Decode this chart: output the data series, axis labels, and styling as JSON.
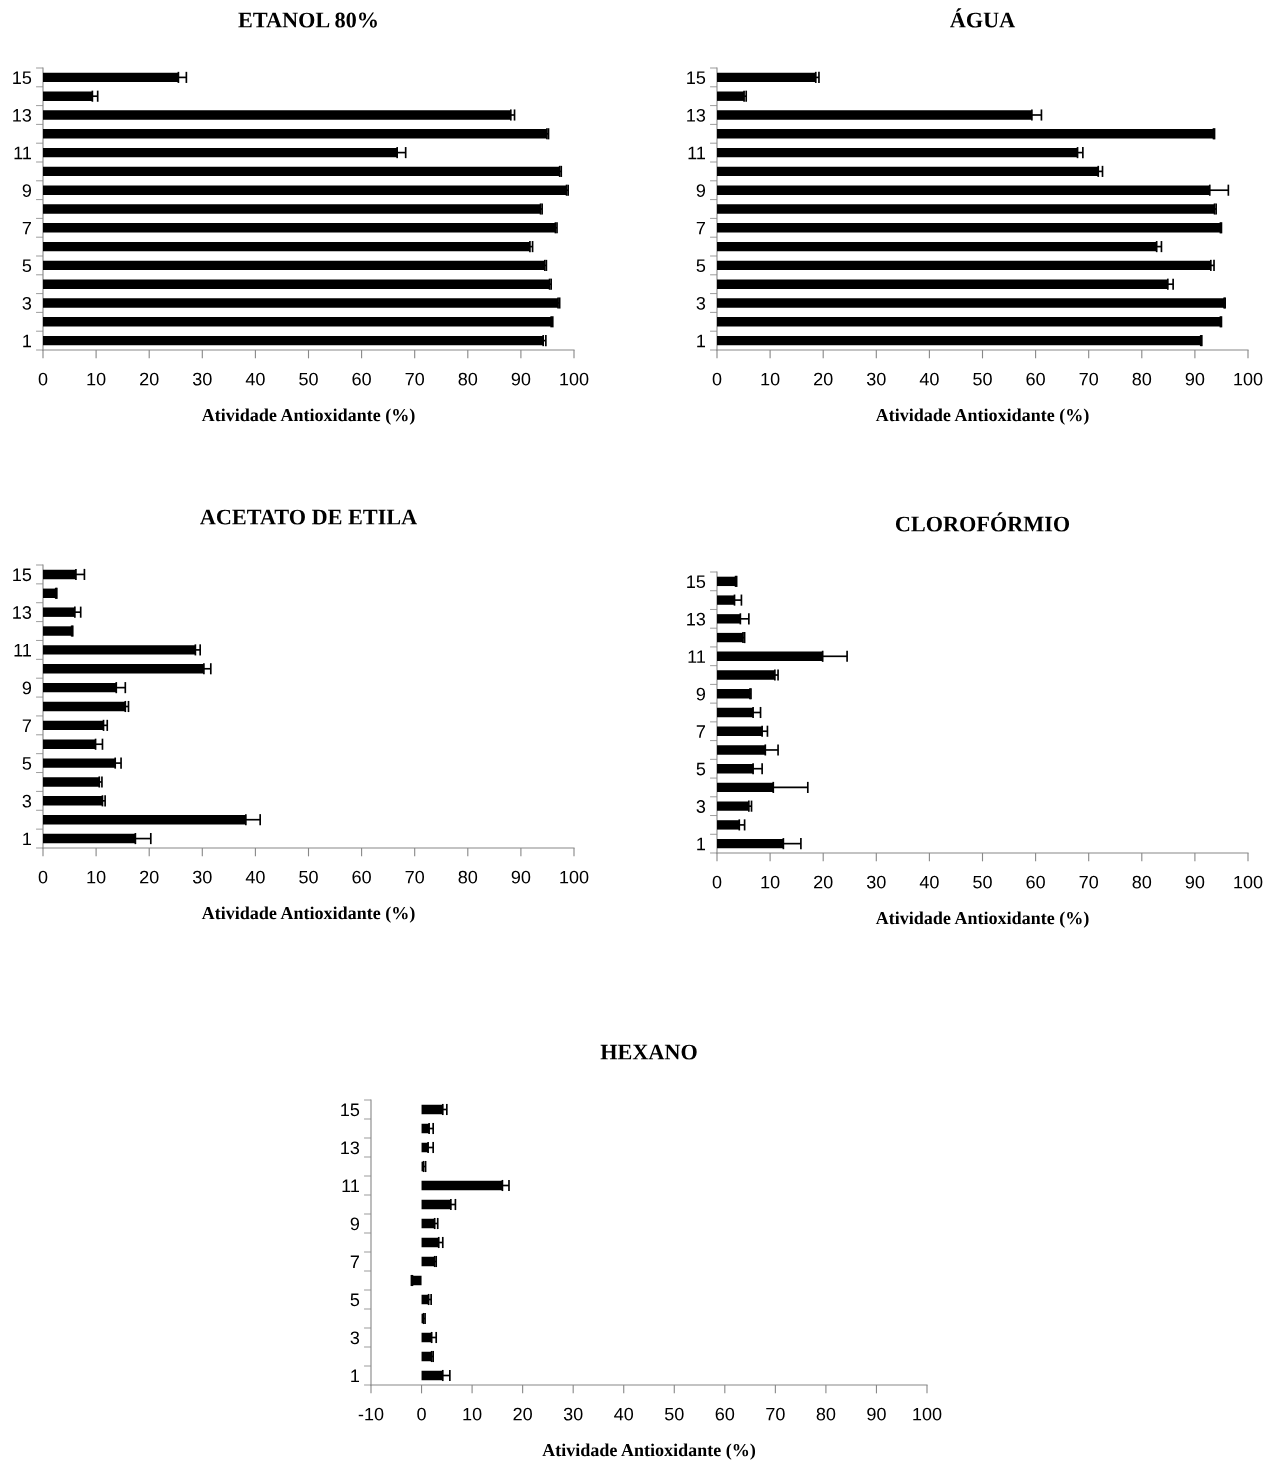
{
  "chart_data": [
    {
      "type": "bar",
      "orientation": "horizontal",
      "title": "ETANOL 80%",
      "xlabel": "Atividade Antioxidante (%)",
      "categories": [
        "15",
        null,
        "13",
        null,
        "11",
        null,
        "9",
        null,
        "7",
        null,
        "5",
        null,
        "3",
        null,
        "1"
      ],
      "values": [
        25.5,
        9.3,
        88.1,
        94.9,
        66.7,
        97.3,
        98.6,
        93.7,
        96.5,
        91.7,
        94.5,
        95.4,
        97.0,
        95.7,
        94.2
      ],
      "errors": [
        [
          25.5,
          27.0
        ],
        [
          9.3,
          10.3
        ],
        [
          88.1,
          88.8
        ],
        [
          94.9,
          95.2
        ],
        [
          66.7,
          68.3
        ],
        [
          97.3,
          97.6
        ],
        [
          98.6,
          98.9
        ],
        [
          93.7,
          94.0
        ],
        [
          96.5,
          96.8
        ],
        [
          91.7,
          92.2
        ],
        [
          94.5,
          94.8
        ],
        [
          95.4,
          95.7
        ],
        [
          97.0,
          97.3
        ],
        [
          95.7,
          96.0
        ],
        [
          94.2,
          94.7
        ]
      ],
      "color": "#000000",
      "xlim": [
        0,
        100
      ],
      "xticks": [
        0,
        10,
        20,
        30,
        40,
        50,
        60,
        70,
        80,
        90,
        100
      ],
      "grid": false
    },
    {
      "type": "bar",
      "orientation": "horizontal",
      "title": "ÁGUA",
      "xlabel": "Atividade Antioxidante (%)",
      "categories": [
        "15",
        null,
        "13",
        null,
        "11",
        null,
        "9",
        null,
        "7",
        null,
        "5",
        null,
        "3",
        null,
        "1"
      ],
      "values": [
        18.6,
        5.1,
        59.3,
        93.5,
        67.9,
        71.8,
        92.8,
        93.7,
        94.8,
        82.8,
        93.0,
        84.9,
        95.5,
        94.8,
        91.1
      ],
      "errors": [
        [
          18.6,
          19.2
        ],
        [
          5.1,
          5.5
        ],
        [
          59.3,
          61.1
        ],
        [
          93.5,
          93.7
        ],
        [
          67.9,
          68.9
        ],
        [
          71.8,
          72.6
        ],
        [
          92.8,
          96.3
        ],
        [
          93.7,
          94.0
        ],
        [
          94.8,
          95.0
        ],
        [
          82.8,
          83.7
        ],
        [
          93.0,
          93.6
        ],
        [
          84.9,
          85.9
        ],
        [
          95.5,
          95.7
        ],
        [
          94.8,
          95.0
        ],
        [
          91.1,
          91.3
        ]
      ],
      "color": "#000000",
      "xlim": [
        0,
        100
      ],
      "xticks": [
        0,
        10,
        20,
        30,
        40,
        50,
        60,
        70,
        80,
        90,
        100
      ],
      "grid": false
    },
    {
      "type": "bar",
      "orientation": "horizontal",
      "title": "ACETATO DE ETILA",
      "xlabel": "Atividade Antioxidante (%)",
      "categories": [
        "15",
        null,
        "13",
        null,
        "11",
        null,
        "9",
        null,
        "7",
        null,
        "5",
        null,
        "3",
        null,
        "1"
      ],
      "values": [
        6.2,
        2.4,
        6.0,
        5.4,
        28.7,
        30.3,
        13.8,
        15.5,
        11.4,
        9.9,
        13.6,
        10.6,
        11.2,
        38.2,
        17.4
      ],
      "errors": [
        [
          6.2,
          7.8
        ],
        [
          2.4,
          2.6
        ],
        [
          6.0,
          7.1
        ],
        [
          5.4,
          5.6
        ],
        [
          28.7,
          29.6
        ],
        [
          30.3,
          31.6
        ],
        [
          13.8,
          15.5
        ],
        [
          15.5,
          16.1
        ],
        [
          11.4,
          12.1
        ],
        [
          9.9,
          11.2
        ],
        [
          13.6,
          14.7
        ],
        [
          10.6,
          11.1
        ],
        [
          11.2,
          11.7
        ],
        [
          38.2,
          40.9
        ],
        [
          17.4,
          20.3
        ]
      ],
      "color": "#000000",
      "xlim": [
        0,
        100
      ],
      "xticks": [
        0,
        10,
        20,
        30,
        40,
        50,
        60,
        70,
        80,
        90,
        100
      ],
      "grid": false
    },
    {
      "type": "bar",
      "orientation": "horizontal",
      "title": "CLOROFÓRMIO",
      "xlabel": "Atividade Antioxidante (%)",
      "categories": [
        "15",
        null,
        "13",
        null,
        "11",
        null,
        "9",
        null,
        "7",
        null,
        "5",
        null,
        "3",
        null,
        "1"
      ],
      "values": [
        3.5,
        3.3,
        4.4,
        4.9,
        19.9,
        10.9,
        6.2,
        6.8,
        8.5,
        9.1,
        6.8,
        10.6,
        6.0,
        4.2,
        12.5
      ],
      "errors": [
        [
          3.5,
          3.7
        ],
        [
          3.3,
          4.6
        ],
        [
          4.4,
          6.0
        ],
        [
          4.9,
          5.2
        ],
        [
          19.9,
          24.5
        ],
        [
          10.9,
          11.5
        ],
        [
          6.2,
          6.4
        ],
        [
          6.8,
          8.2
        ],
        [
          8.5,
          9.5
        ],
        [
          9.1,
          11.5
        ],
        [
          6.8,
          8.5
        ],
        [
          10.6,
          17.1
        ],
        [
          6.0,
          6.5
        ],
        [
          4.2,
          5.2
        ],
        [
          12.5,
          15.8
        ]
      ],
      "color": "#000000",
      "xlim": [
        0,
        100
      ],
      "xticks": [
        0,
        10,
        20,
        30,
        40,
        50,
        60,
        70,
        80,
        90,
        100
      ],
      "grid": false
    },
    {
      "type": "bar",
      "orientation": "horizontal",
      "title": "HEXANO",
      "xlabel": "Atividade Antioxidante (%)",
      "categories": [
        "15",
        null,
        "13",
        null,
        "11",
        null,
        "9",
        null,
        "7",
        null,
        "5",
        null,
        "3",
        null,
        "1"
      ],
      "values": [
        4.2,
        1.5,
        1.3,
        0.4,
        16.0,
        5.8,
        2.6,
        3.4,
        2.6,
        -1.8,
        1.4,
        0.4,
        2.0,
        2.0,
        4.2
      ],
      "errors": [
        [
          4.2,
          5.0
        ],
        [
          1.5,
          2.3
        ],
        [
          1.3,
          2.3
        ],
        [
          0.4,
          0.8
        ],
        [
          16.0,
          17.3
        ],
        [
          5.8,
          6.7
        ],
        [
          2.6,
          3.2
        ],
        [
          3.4,
          4.2
        ],
        [
          2.6,
          2.9
        ],
        [
          -2.0,
          -1.8
        ],
        [
          1.4,
          1.9
        ],
        [
          0.4,
          0.7
        ],
        [
          2.0,
          2.9
        ],
        [
          2.0,
          2.3
        ],
        [
          4.2,
          5.6
        ]
      ],
      "color": "#000000",
      "xlim": [
        -10,
        100
      ],
      "xticks": [
        -10,
        0,
        10,
        20,
        30,
        40,
        50,
        60,
        70,
        80,
        90,
        100
      ],
      "grid": false
    }
  ]
}
